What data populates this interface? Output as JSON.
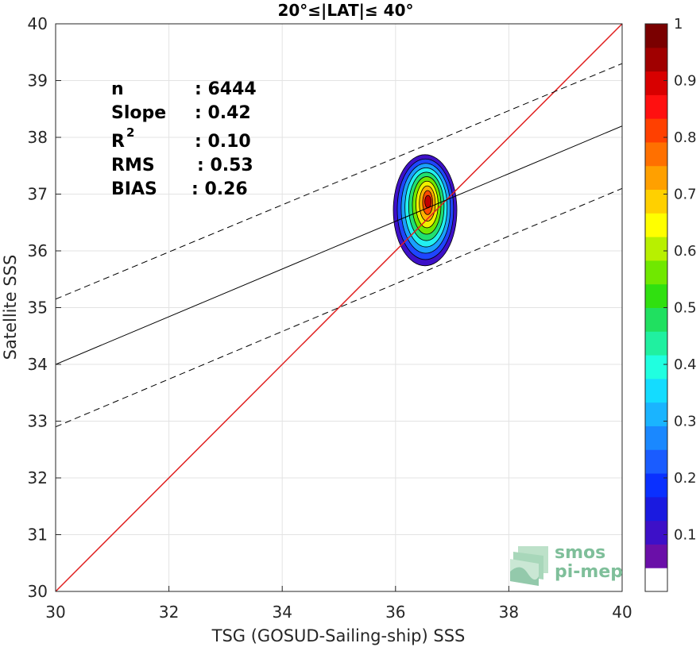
{
  "chart_data": {
    "type": "contour",
    "title": "20°≤|LAT|≤ 40°",
    "xlabel": "TSG (GOSUD-Sailing-ship) SSS",
    "ylabel": "Satellite SSS",
    "xlim": [
      30,
      40
    ],
    "ylim": [
      30,
      40
    ],
    "xticks": [
      "30",
      "32",
      "34",
      "36",
      "38",
      "40"
    ],
    "yticks": [
      "30",
      "31",
      "32",
      "33",
      "34",
      "35",
      "36",
      "37",
      "38",
      "39",
      "40"
    ],
    "grid": true,
    "stats": {
      "n_label": "n",
      "n_value": ": 6444",
      "slope_label": "Slope",
      "slope_value": ": 0.42",
      "r2_label": "R",
      "r2_sup": "2",
      "r2_value": ": 0.10",
      "rms_label": "RMS",
      "rms_value": ": 0.53",
      "bias_label": "BIAS",
      "bias_value": ": 0.26"
    },
    "lines": {
      "identity": {
        "x": [
          30,
          40
        ],
        "y": [
          30,
          40
        ],
        "color": "#e02020"
      },
      "regression": {
        "x": [
          30,
          40
        ],
        "y": [
          34.0,
          38.2
        ],
        "color": "#000000"
      },
      "upper_bound": {
        "x": [
          30,
          40
        ],
        "y": [
          35.15,
          39.3
        ],
        "color": "#000000"
      },
      "lower_bound": {
        "x": [
          30,
          40
        ],
        "y": [
          32.9,
          37.1
        ],
        "color": "#000000"
      }
    },
    "density_center": {
      "x": 36.55,
      "y": 36.8
    },
    "contour_levels": [
      0.05,
      0.15,
      0.25,
      0.35,
      0.45,
      0.55,
      0.65,
      0.75,
      0.85,
      0.95
    ],
    "contour_colors": [
      "#3d10c8",
      "#1f45ff",
      "#1aa0ff",
      "#22f0f0",
      "#20e070",
      "#70e800",
      "#f0f000",
      "#ffb000",
      "#ff4a00",
      "#c00000"
    ],
    "colorbar": {
      "ticks": [
        "0.1",
        "0.2",
        "0.3",
        "0.4",
        "0.5",
        "0.6",
        "0.7",
        "0.8",
        "0.9",
        "1"
      ],
      "tick_values": [
        0.1,
        0.2,
        0.3,
        0.4,
        0.5,
        0.6,
        0.7,
        0.8,
        0.9,
        1.0
      ],
      "range": [
        0,
        1
      ],
      "colors": [
        "#ffffff",
        "#6a0fa8",
        "#3d10c8",
        "#1a1ae0",
        "#0a30ff",
        "#1a5cff",
        "#1a88ff",
        "#1ab4ff",
        "#14dcff",
        "#20ffe0",
        "#20f0a0",
        "#20e060",
        "#30e010",
        "#70e800",
        "#b8f000",
        "#ffff00",
        "#ffd000",
        "#ffa000",
        "#ff7000",
        "#ff4000",
        "#ff1010",
        "#d80000",
        "#a00000",
        "#7a0000"
      ]
    },
    "logo": {
      "line1": "smos",
      "line2": "pi-mep"
    }
  }
}
